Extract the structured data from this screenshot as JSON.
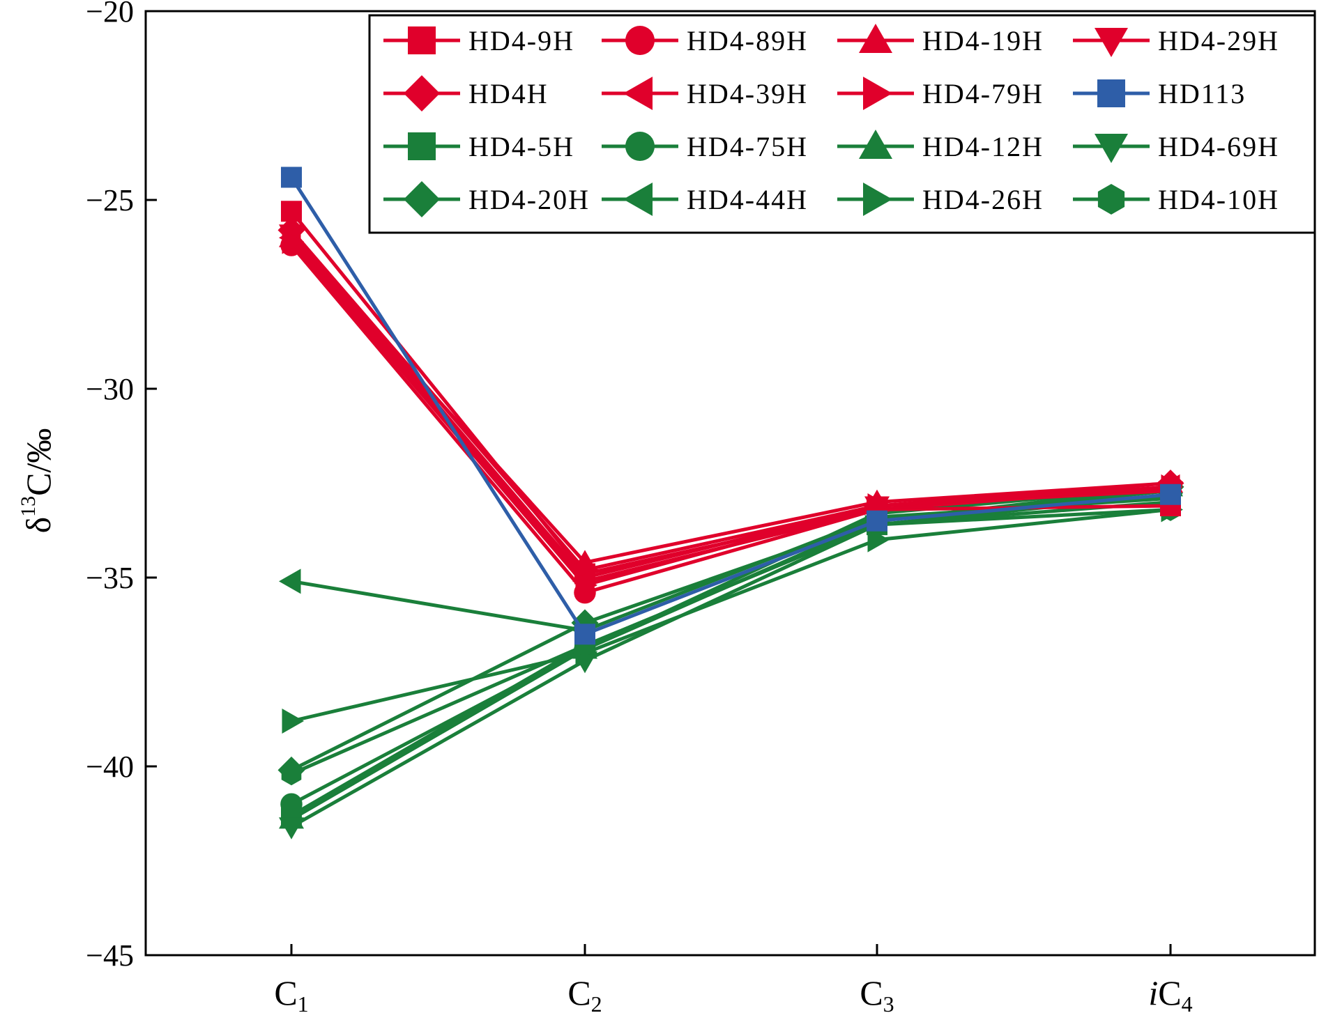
{
  "chart_data": {
    "type": "line",
    "title": "",
    "xlabel": "",
    "ylabel": "δ13C/‰",
    "ylabel_parts": {
      "symbol": "δ",
      "superscript": "13",
      "element": "C",
      "unit": "/‰"
    },
    "categories": [
      {
        "main": "C",
        "sub": "1",
        "prefix": ""
      },
      {
        "main": "C",
        "sub": "2",
        "prefix": ""
      },
      {
        "main": "C",
        "sub": "3",
        "prefix": ""
      },
      {
        "main": "C",
        "sub": "4",
        "prefix": "i"
      }
    ],
    "ylim": [
      -45,
      -20
    ],
    "yticks": [
      -45,
      -40,
      -35,
      -30,
      -25,
      -20
    ],
    "ytick_labels": [
      "−45",
      "−40",
      "−35",
      "−30",
      "−25",
      "−20"
    ],
    "grid": false,
    "legend_position": "top-right",
    "colors": {
      "red": "#e0002b",
      "blue": "#2e5ea8",
      "green": "#1a7f3a"
    },
    "series": [
      {
        "name": "HD4-9H",
        "color": "red",
        "marker": "square",
        "values": [
          -25.3,
          -34.9,
          -33.2,
          -33.1
        ]
      },
      {
        "name": "HD4-89H",
        "color": "red",
        "marker": "circle",
        "values": [
          -26.2,
          -35.4,
          -33.2,
          -32.6
        ]
      },
      {
        "name": "HD4-19H",
        "color": "red",
        "marker": "triangle-up",
        "values": [
          -26.0,
          -34.6,
          -33.0,
          -32.5
        ]
      },
      {
        "name": "HD4-29H",
        "color": "red",
        "marker": "triangle-down",
        "values": [
          -25.9,
          -35.0,
          -33.1,
          -32.7
        ]
      },
      {
        "name": "HD4H",
        "color": "red",
        "marker": "diamond",
        "values": [
          -25.8,
          -34.8,
          -33.1,
          -32.5
        ]
      },
      {
        "name": "HD4-39H",
        "color": "red",
        "marker": "triangle-left",
        "values": [
          -26.0,
          -35.1,
          -33.2,
          -32.6
        ]
      },
      {
        "name": "HD4-79H",
        "color": "red",
        "marker": "triangle-right",
        "values": [
          -26.1,
          -35.2,
          -33.1,
          -32.6
        ]
      },
      {
        "name": "HD113",
        "color": "blue",
        "marker": "square",
        "values": [
          -24.4,
          -36.5,
          -33.5,
          -32.8
        ]
      },
      {
        "name": "HD4-5H",
        "color": "green",
        "marker": "square",
        "values": [
          -41.3,
          -36.8,
          -33.6,
          -32.8
        ]
      },
      {
        "name": "HD4-75H",
        "color": "green",
        "marker": "circle",
        "values": [
          -41.0,
          -36.9,
          -33.5,
          -32.7
        ]
      },
      {
        "name": "HD4-12H",
        "color": "green",
        "marker": "triangle-up",
        "values": [
          -41.4,
          -36.9,
          -33.3,
          -32.6
        ]
      },
      {
        "name": "HD4-69H",
        "color": "green",
        "marker": "triangle-down",
        "values": [
          -41.6,
          -37.2,
          -33.6,
          -33.0
        ]
      },
      {
        "name": "HD4-20H",
        "color": "green",
        "marker": "diamond",
        "values": [
          -40.1,
          -36.2,
          -33.5,
          -32.6
        ]
      },
      {
        "name": "HD4-44H",
        "color": "green",
        "marker": "triangle-left",
        "values": [
          -35.1,
          -36.4,
          -33.4,
          -32.9
        ]
      },
      {
        "name": "HD4-26H",
        "color": "green",
        "marker": "triangle-right",
        "values": [
          -38.8,
          -37.0,
          -34.0,
          -33.2
        ]
      },
      {
        "name": "HD4-10H",
        "color": "green",
        "marker": "hexagon",
        "values": [
          -40.2,
          -36.8,
          -33.6,
          -33.2
        ]
      }
    ]
  }
}
